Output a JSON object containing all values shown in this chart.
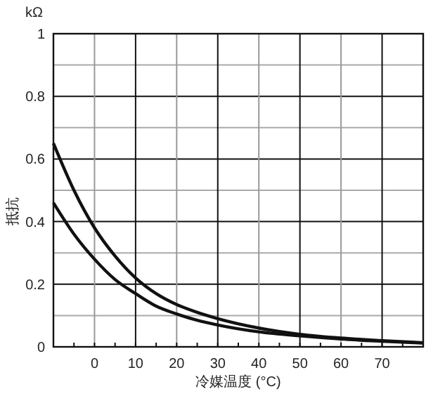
{
  "chart_data": {
    "type": "line",
    "xlabel": "冷媒温度 (°C)",
    "ylabel": "抵抗",
    "annotations": [
      "kΩ"
    ],
    "x": [
      -10,
      -5,
      0,
      5,
      10,
      15,
      20,
      25,
      30,
      40,
      50,
      60,
      70,
      80
    ],
    "series": [
      {
        "color": "#111111",
        "values": [
          0.65,
          0.5,
          0.38,
          0.29,
          0.22,
          0.17,
          0.135,
          0.11,
          0.09,
          0.06,
          0.04,
          0.028,
          0.02,
          0.013
        ]
      },
      {
        "color": "#111111",
        "values": [
          0.46,
          0.36,
          0.28,
          0.215,
          0.17,
          0.13,
          0.105,
          0.085,
          0.07,
          0.048,
          0.035,
          0.025,
          0.018,
          0.012
        ]
      }
    ],
    "xlim": [
      -10,
      80
    ],
    "xticks": [
      {
        "value": -10,
        "label": null
      },
      {
        "value": -5,
        "label": null
      },
      0,
      {
        "value": 5,
        "label": null
      },
      10,
      {
        "value": 15,
        "label": null
      },
      20,
      {
        "value": 25,
        "label": null
      },
      30,
      {
        "value": 35,
        "label": null
      },
      40,
      {
        "value": 45,
        "label": null
      },
      50,
      {
        "value": 55,
        "label": null
      },
      60,
      {
        "value": 65,
        "label": null
      },
      70,
      {
        "value": 75,
        "label": null
      },
      {
        "value": 80,
        "label": null
      }
    ],
    "ylim": [
      0,
      1
    ],
    "yticks": [
      0,
      {
        "value": 0.1,
        "label": null
      },
      0.2,
      {
        "value": 0.3,
        "label": null
      },
      0.4,
      {
        "value": 0.5,
        "label": null
      },
      0.6,
      {
        "value": 0.7,
        "label": null
      },
      0.8,
      {
        "value": 0.9,
        "label": null
      },
      1
    ],
    "grid": true,
    "marker": "none",
    "line_style": "solid"
  }
}
